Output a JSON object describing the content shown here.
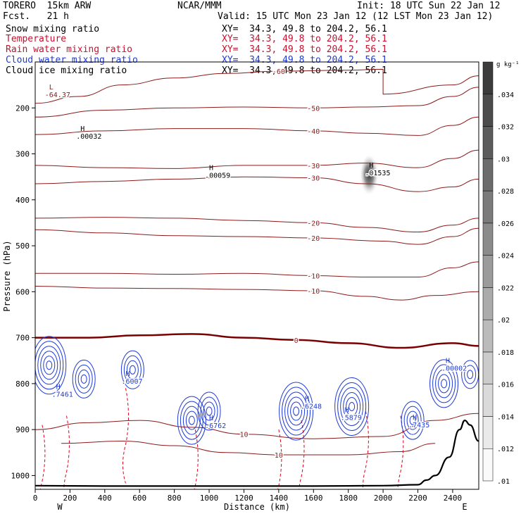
{
  "header": {
    "model": "TORERO  15km ARW",
    "org": "NCAR/MMM",
    "init": "Init: 18 UTC Sun 22 Jan 12",
    "fcst": "Fcst.   21 h",
    "valid": "Valid: 15 UTC Mon 23 Jan 12 (12 LST Mon 23 Jan 12)",
    "fields": [
      {
        "label": "Snow mixing ratio",
        "xy": "XY=  34.3, 49.8 to 204.2, 56.1",
        "color": "#000000"
      },
      {
        "label": "Temperature",
        "xy": "XY=  34.3, 49.8 to 204.2, 56.1",
        "color": "#c8102e"
      },
      {
        "label": "Rain water mixing ratio",
        "xy": "XY=  34.3, 49.8 to 204.2, 56.1",
        "color": "#c8102e"
      },
      {
        "label": "Cloud water mixing ratio",
        "xy": "XY=  34.3, 49.8 to 204.2, 56.1",
        "color": "#1f3bd6"
      },
      {
        "label": "Cloud ice mixing ratio",
        "xy": "XY=  34.3, 49.8 to 204.2, 56.1",
        "color": "#000000"
      }
    ]
  },
  "chart_data": {
    "type": "contour",
    "xlabel": "Distance (km)",
    "ylabel": "Pressure (hPa)",
    "xlim": [
      0,
      2550
    ],
    "ylim": [
      1030,
      100
    ],
    "x_ticks": [
      0,
      200,
      400,
      600,
      800,
      1000,
      1200,
      1400,
      1600,
      1800,
      2000,
      2200,
      2400
    ],
    "y_ticks": [
      200,
      300,
      400,
      500,
      600,
      700,
      800,
      900,
      1000
    ],
    "x_end_labels": {
      "left": "W",
      "right": "E"
    },
    "temperature_isotherms": [
      {
        "value": -60,
        "points": [
          [
            0,
            190
          ],
          [
            250,
            175
          ],
          [
            500,
            150
          ],
          [
            800,
            135
          ],
          [
            1100,
            125
          ],
          [
            1400,
            120
          ],
          [
            1800,
            118
          ],
          [
            2000,
            116
          ],
          [
            2000,
            170
          ],
          [
            2400,
            150
          ],
          [
            2550,
            130
          ]
        ]
      },
      {
        "value": -50,
        "points": [
          [
            0,
            220
          ],
          [
            400,
            205
          ],
          [
            800,
            200
          ],
          [
            1200,
            198
          ],
          [
            1600,
            200
          ],
          [
            1900,
            198
          ],
          [
            2200,
            195
          ],
          [
            2400,
            175
          ],
          [
            2550,
            155
          ]
        ]
      },
      {
        "value": -40,
        "points": [
          [
            0,
            258
          ],
          [
            400,
            250
          ],
          [
            800,
            245
          ],
          [
            1200,
            245
          ],
          [
            1600,
            250
          ],
          [
            1900,
            255
          ],
          [
            2200,
            260
          ],
          [
            2400,
            238
          ],
          [
            2550,
            220
          ]
        ]
      },
      {
        "value": -30,
        "points": [
          [
            0,
            325
          ],
          [
            400,
            330
          ],
          [
            800,
            332
          ],
          [
            1200,
            325
          ],
          [
            1600,
            325
          ],
          [
            1900,
            320
          ],
          [
            2200,
            330
          ],
          [
            2400,
            310
          ],
          [
            2550,
            292
          ]
        ]
      },
      {
        "value": -30,
        "points": [
          [
            0,
            365
          ],
          [
            400,
            360
          ],
          [
            800,
            355
          ],
          [
            1200,
            350
          ],
          [
            1600,
            352
          ],
          [
            1900,
            365
          ],
          [
            2200,
            382
          ],
          [
            2400,
            372
          ],
          [
            2550,
            355
          ]
        ]
      },
      {
        "value": -20,
        "points": [
          [
            0,
            440
          ],
          [
            400,
            438
          ],
          [
            800,
            440
          ],
          [
            1200,
            445
          ],
          [
            1600,
            450
          ],
          [
            1900,
            460
          ],
          [
            2200,
            470
          ],
          [
            2400,
            455
          ],
          [
            2550,
            440
          ]
        ]
      },
      {
        "value": -20,
        "points": [
          [
            0,
            465
          ],
          [
            400,
            472
          ],
          [
            800,
            478
          ],
          [
            1200,
            480
          ],
          [
            1600,
            483
          ],
          [
            2000,
            490
          ],
          [
            2200,
            497
          ],
          [
            2400,
            480
          ],
          [
            2550,
            462
          ]
        ]
      },
      {
        "value": -10,
        "points": [
          [
            0,
            560
          ],
          [
            400,
            560
          ],
          [
            800,
            562
          ],
          [
            1200,
            560
          ],
          [
            1600,
            565
          ],
          [
            1900,
            568
          ],
          [
            2200,
            568
          ],
          [
            2400,
            548
          ],
          [
            2550,
            535
          ]
        ]
      },
      {
        "value": -10,
        "points": [
          [
            0,
            588
          ],
          [
            400,
            592
          ],
          [
            800,
            593
          ],
          [
            1200,
            595
          ],
          [
            1600,
            598
          ],
          [
            1900,
            610
          ],
          [
            2100,
            618
          ],
          [
            2300,
            608
          ],
          [
            2550,
            600
          ]
        ]
      },
      {
        "value": 0,
        "points": [
          [
            0,
            700
          ],
          [
            300,
            700
          ],
          [
            600,
            695
          ],
          [
            900,
            692
          ],
          [
            1200,
            700
          ],
          [
            1500,
            705
          ],
          [
            1800,
            712
          ],
          [
            2100,
            722
          ],
          [
            2400,
            712
          ],
          [
            2550,
            718
          ]
        ]
      },
      {
        "value": 10,
        "points": [
          [
            0,
            900
          ],
          [
            300,
            885
          ],
          [
            600,
            880
          ],
          [
            900,
            895
          ],
          [
            1200,
            910
          ],
          [
            1600,
            920
          ],
          [
            2000,
            915
          ],
          [
            2300,
            880
          ],
          [
            2550,
            865
          ]
        ]
      },
      {
        "value": 10,
        "points": [
          [
            150,
            930
          ],
          [
            500,
            925
          ],
          [
            800,
            935
          ],
          [
            1100,
            950
          ],
          [
            1400,
            955
          ],
          [
            1800,
            955
          ],
          [
            2100,
            948
          ],
          [
            2300,
            930
          ]
        ]
      }
    ],
    "max_min_labels": [
      {
        "kind": "L",
        "text": "-64.37",
        "x": 80,
        "p": 160
      },
      {
        "kind": "H",
        "text": ".00032",
        "x": 260,
        "p": 250
      },
      {
        "kind": "H",
        "text": ".00059",
        "x": 1000,
        "p": 335
      },
      {
        "kind": "H",
        "text": ".01535",
        "x": 1920,
        "p": 330
      },
      {
        "kind": "H",
        "text": ".00002",
        "x": 2360,
        "p": 755
      },
      {
        "kind": "H",
        "text": ".7461",
        "x": 120,
        "p": 812
      },
      {
        "kind": "H",
        "text": ".6007",
        "x": 520,
        "p": 783
      },
      {
        "kind": "H",
        "text": ".6762",
        "x": 1000,
        "p": 880
      },
      {
        "kind": "H",
        "text": ".6248",
        "x": 1550,
        "p": 838
      },
      {
        "kind": "H",
        "text": ".5879",
        "x": 1780,
        "p": 862
      },
      {
        "kind": "H",
        "text": ".7435",
        "x": 2170,
        "p": 878
      }
    ],
    "colorbar": {
      "unit": "g kg⁻¹",
      "levels": [
        0.01,
        0.012,
        0.014,
        0.016,
        0.018,
        0.02,
        0.022,
        0.024,
        0.026,
        0.028,
        0.03,
        0.032,
        0.034
      ],
      "labels": [
        ".01",
        ".012",
        ".014",
        ".016",
        ".018",
        ".02",
        ".022",
        ".024",
        ".026",
        ".028",
        ".03",
        ".032",
        ".034"
      ]
    },
    "terrain_surface": [
      [
        0,
        1022
      ],
      [
        400,
        1023
      ],
      [
        800,
        1023
      ],
      [
        1200,
        1023
      ],
      [
        1600,
        1023
      ],
      [
        2000,
        1022
      ],
      [
        2200,
        1020
      ],
      [
        2250,
        1010
      ],
      [
        2300,
        1000
      ],
      [
        2380,
        960
      ],
      [
        2440,
        900
      ],
      [
        2470,
        880
      ],
      [
        2500,
        890
      ],
      [
        2550,
        925
      ]
    ]
  }
}
